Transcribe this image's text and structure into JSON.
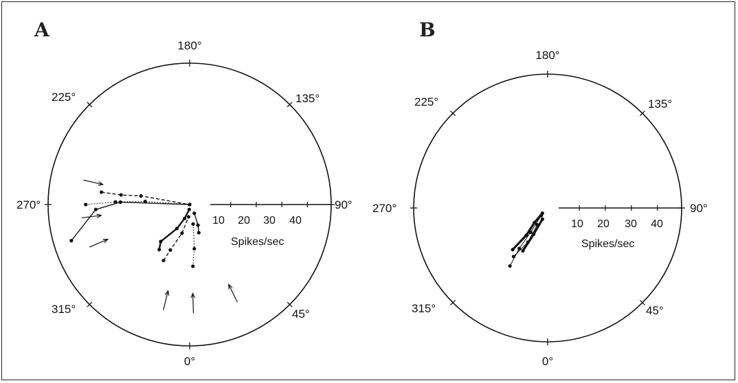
{
  "chart_data": [
    {
      "type": "polar",
      "panel_label": "A",
      "angle_labels": [
        "180°",
        "135°",
        "90°",
        "45°",
        "0°",
        "315°",
        "270°",
        "225°"
      ],
      "radial_axis": {
        "ticks": [
          "10",
          "20",
          "30",
          "40"
        ],
        "label": "Spikes/sec",
        "rlim": [
          0,
          48
        ]
      },
      "series": [
        {
          "style": "solid",
          "points": [
            [
              287,
              50
            ],
            [
              273,
              38
            ],
            [
              268,
              28
            ],
            [
              270,
              0
            ]
          ]
        },
        {
          "style": "dotted",
          "points": [
            [
              270,
              42
            ],
            [
              268,
              30
            ],
            [
              266,
              18
            ],
            [
              270,
              0
            ]
          ]
        },
        {
          "style": "dashed",
          "points": [
            [
              262,
              36
            ],
            [
              262,
              28
            ],
            [
              260,
              20
            ],
            [
              270,
              0
            ]
          ]
        },
        {
          "style": "solid-heavy",
          "points": [
            [
              326,
              22
            ],
            [
              322,
              19
            ],
            [
              332,
              11
            ],
            [
              340,
              6
            ],
            [
              355,
              2
            ]
          ]
        },
        {
          "style": "dashed",
          "points": [
            [
              335,
              25
            ],
            [
              337,
              20
            ],
            [
              345,
              12
            ],
            [
              355,
              5
            ]
          ]
        },
        {
          "style": "dotted",
          "points": [
            [
              3,
              25
            ],
            [
              6,
              18
            ],
            [
              10,
              8
            ]
          ]
        },
        {
          "style": "solid",
          "points": [
            [
              18,
              12
            ],
            [
              22,
              9
            ],
            [
              28,
              4
            ]
          ]
        }
      ],
      "stimulus_arrows_deg": [
        293,
        277,
        257,
        346,
        2,
        26
      ]
    },
    {
      "type": "polar",
      "panel_label": "B",
      "angle_labels": [
        "180°",
        "135°",
        "90°",
        "45°",
        "0°",
        "315°",
        "270°",
        "225°"
      ],
      "radial_axis": {
        "ticks": [
          "10",
          "20",
          "30",
          "40"
        ],
        "label": "Spikes/sec",
        "rlim": [
          0,
          48
        ]
      },
      "series": [
        {
          "style": "thin",
          "points": [
            [
              327,
              28
            ],
            [
              325,
              20
            ],
            [
              325,
              12
            ],
            [
              320,
              4
            ]
          ]
        },
        {
          "style": "heavy",
          "points": [
            [
              320,
              22
            ],
            [
              322,
              14
            ],
            [
              318,
              8
            ],
            [
              315,
              3
            ]
          ]
        },
        {
          "style": "heavy",
          "points": [
            [
              330,
              20
            ],
            [
              332,
              12
            ],
            [
              335,
              5
            ]
          ]
        },
        {
          "style": "thin",
          "points": [
            [
              325,
              24
            ],
            [
              330,
              16
            ],
            [
              328,
              8
            ]
          ]
        }
      ]
    }
  ]
}
